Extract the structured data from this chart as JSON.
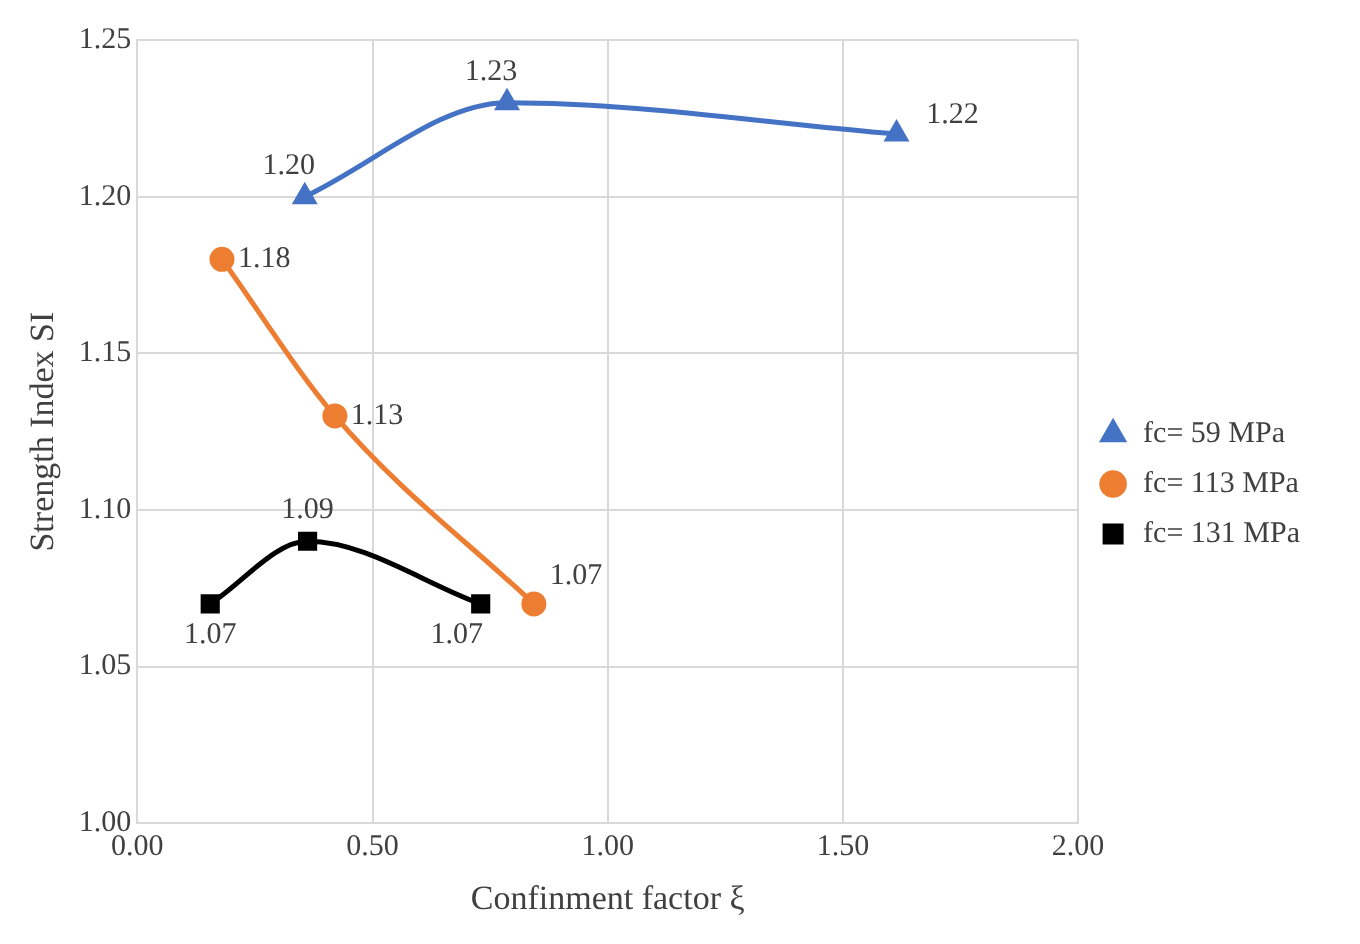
{
  "chart_data": {
    "type": "line",
    "xlabel": "Confinment factor ξ",
    "ylabel": "Strength Index SI",
    "xlim": [
      0,
      2
    ],
    "xticks": [
      {
        "value": 0,
        "label": "0.00"
      },
      {
        "value": 0.5,
        "label": "0.50"
      },
      {
        "value": 1,
        "label": "1.00"
      },
      {
        "value": 1.5,
        "label": "1.50"
      },
      {
        "value": 2,
        "label": "2.00"
      }
    ],
    "ylim": [
      1,
      1.25
    ],
    "yticks": [
      {
        "value": 1,
        "label": "1.00"
      },
      {
        "value": 1.05,
        "label": "1.05"
      },
      {
        "value": 1.1,
        "label": "1.10"
      },
      {
        "value": 1.15,
        "label": "1.15"
      },
      {
        "value": 1.2,
        "label": "1.20"
      },
      {
        "value": 1.25,
        "label": "1.25"
      }
    ],
    "grid": true,
    "legend": "right",
    "data_labels": true,
    "series": [
      {
        "name": "fc= 59 MPa",
        "color": "#4472c4",
        "marker": "triangle",
        "x": [
          0.356,
          0.786,
          1.614
        ],
        "values": [
          1.2,
          1.23,
          1.22
        ],
        "value_labels": [
          "1.20",
          "1.23",
          "1.22"
        ]
      },
      {
        "name": "fc= 113 MPa",
        "color": "#ed7d31",
        "marker": "circle",
        "x": [
          0.18,
          0.42,
          0.843
        ],
        "values": [
          1.18,
          1.13,
          1.07
        ],
        "value_labels": [
          "1.18",
          "1.13",
          "1.07"
        ]
      },
      {
        "name": "fc= 131 MPa",
        "color": "#000000",
        "marker": "square",
        "x": [
          0.155,
          0.362,
          0.73
        ],
        "values": [
          1.07,
          1.09,
          1.07
        ],
        "value_labels": [
          "1.07",
          "1.09",
          "1.07"
        ]
      }
    ]
  }
}
